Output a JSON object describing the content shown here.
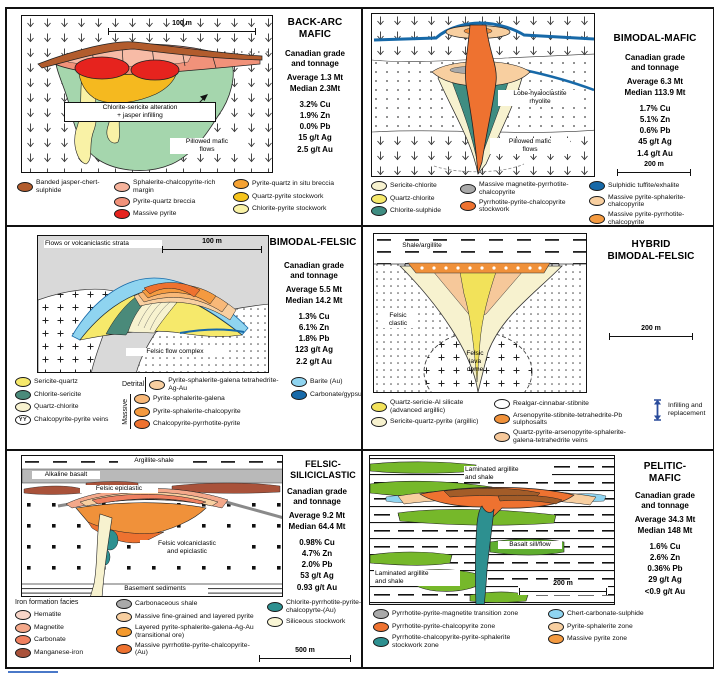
{
  "panels": [
    {
      "id": "back-arc-mafic",
      "title_lines": [
        "BACK-ARC",
        "MAFIC"
      ],
      "grade_heading": "Canadian grade\nand tonnage",
      "average": "Average 1.3 Mt",
      "median": "Median 2.3Mt",
      "grades": [
        "3.2% Cu",
        "1.9% Zn",
        "0.0% Pb",
        "15 g/t Ag",
        "2.5 g/t Au"
      ],
      "scale_label": "100 m",
      "labels": {
        "alteration": "Chlorite-sericite alteration\n+ jasper infilling",
        "pillowed": "Pillowed mafic\nflows"
      },
      "legend": {
        "col1": [
          {
            "label": "Banded jasper-chert-sulphide",
            "color": "#b25c2d"
          }
        ],
        "col2": [
          {
            "label": "Sphalerite-chalcopyrite-rich margin",
            "color": "#f6b39c"
          },
          {
            "label": "Pyrite-quartz breccia",
            "color": "#f1927a"
          },
          {
            "label": "Massive pyrite",
            "color": "#e6231e"
          }
        ],
        "col3": [
          {
            "label": "Pyrite-quartz in situ breccia",
            "color": "#f5a233"
          },
          {
            "label": "Quartz-pyrite stockwork",
            "color": "#f6c41d"
          },
          {
            "label": "Chlorite-pyrite stockwork",
            "color": "#f9f2a6"
          }
        ]
      }
    },
    {
      "id": "bimodal-mafic",
      "title_lines": [
        "BIMODAL-MAFIC"
      ],
      "grade_heading": "Canadian grade\nand tonnage",
      "average": "Average 6.3 Mt",
      "median": "Median 113.9 Mt",
      "grades": [
        "1.7% Cu",
        "5.1% Zn",
        "0.6% Pb",
        "45 g/t Ag",
        "1.4 g/t Au"
      ],
      "scale_label": "200 m",
      "labels": {
        "lobe": "Lobe-hyaloclastite\nrhyolite",
        "pillowed": "Pillowed mafic\nflows"
      },
      "legend": {
        "col1": [
          {
            "label": "Sericite-chlorite",
            "color": "#f7f2cf"
          },
          {
            "label": "Quartz-chlorite",
            "color": "#f6e96b"
          },
          {
            "label": "Chlorite-sulphide",
            "color": "#3f8d82"
          }
        ],
        "col2": [
          {
            "label": "Massive magnetite-pyrrhotite-chalcopyrite",
            "color": "#a9a9a9"
          },
          {
            "label": "Pyrrhotite-pyrite-chalcopyrite stockwork",
            "color": "#ee7230"
          }
        ],
        "col3": [
          {
            "label": "Sulphidic tuffite/exhalite",
            "color": "#1769a8"
          },
          {
            "label": "Massive pyrite-sphalerite-chalcopyrite",
            "color": "#f8cfa0"
          },
          {
            "label": "Massive pyrite-pyrrhotite-chalcopyrite",
            "color": "#f49a40"
          }
        ]
      }
    },
    {
      "id": "bimodal-felsic",
      "title_lines": [
        "BIMODAL-FELSIC"
      ],
      "grade_heading": "Canadian grade\nand tonnage",
      "average": "Average 5.5 Mt",
      "median": "Median 14.2 Mt",
      "grades": [
        "1.3% Cu",
        "6.1% Zn",
        "1.8% Pb",
        "123 g/t Ag",
        "2.2 g/t Au"
      ],
      "scale_label": "100 m",
      "labels": {
        "strata": "Flows or volcaniclastic strata",
        "complex": "Felsic flow complex"
      },
      "legend": {
        "col1": [
          {
            "label": "Sericite-quartz",
            "color": "#f6e96b"
          },
          {
            "label": "Chlorite-sericite",
            "color": "#4a8a7a"
          },
          {
            "label": "Quartz-chlorite",
            "color": "#f7f2cf"
          },
          {
            "label": "Chalcopyrite-pyrite veins",
            "type": "veins",
            "color": "#ffffff"
          }
        ],
        "detrital_label": "Detrital",
        "detrital": [
          {
            "label": "Pyrite-sphalerite-galena tetrahedrite-Ag-Au",
            "color": "#f8cfa0"
          }
        ],
        "massive_label": "Massive",
        "massive": [
          {
            "label": "Pyrite-sphalerite-galena",
            "color": "#f8b878"
          },
          {
            "label": "Pyrite-sphalerite-chalcopyrite",
            "color": "#f49a40"
          },
          {
            "label": "Chalcopyrite-pyrrhotite-pyrite",
            "color": "#ee7230"
          }
        ],
        "col3": [
          {
            "label": "Barite (Au)",
            "color": "#8fd4f0"
          },
          {
            "label": "Carbonate/gypsum",
            "color": "#1769a8"
          }
        ]
      }
    },
    {
      "id": "hybrid-bimodal-felsic",
      "title_lines": [
        "HYBRID",
        "BIMODAL-FELSIC"
      ],
      "scale_label": "200 m",
      "labels": {
        "shale": "Shale/argillite",
        "clastic": "Felsic\nclastic",
        "dome": "Felsic\nlava\ndome"
      },
      "legend": {
        "col1": [
          {
            "label": "Quartz-sericie-Al silicate (advanced argillic)",
            "color": "#f2e25a"
          },
          {
            "label": "Sericite-quartz-pyrite (argillic)",
            "color": "#f7f2cf"
          }
        ],
        "col2": [
          {
            "label": "Realgar-cinnabar-stibnite",
            "color": "#ffffff"
          },
          {
            "label": "Arsenopyrite-stibnite-tetrahedrite-Pb sulphosalts",
            "color": "#f0913a"
          },
          {
            "label": "Quartz-pyrite-arsenopyrite-sphalerite-galena-tetrahedrite veins",
            "color": "#f6c89a"
          }
        ],
        "col3": [
          {
            "label": "Infilling and replacement",
            "type": "infill"
          }
        ]
      }
    },
    {
      "id": "felsic-siliciclastic",
      "title_lines": [
        "FELSIC-",
        "SILICICLASTIC"
      ],
      "grade_heading": "Canadian grade\nand tonnage",
      "average": "Average 9.2 Mt",
      "median": "Median 64.4 Mt",
      "grades": [
        "0.98% Cu",
        "4.7% Zn",
        "2.0% Pb",
        "53 g/t Ag",
        "0.93 g/t Au"
      ],
      "scale_label": "500 m",
      "labels": {
        "argillite": "Argillite-shale",
        "basalt": "Alkaline basalt",
        "epiclastic": "Felsic epiclastic",
        "volcaniclastic": "Felsic volcaniclastic\nand epiclastic",
        "basement": "Basement sediments"
      },
      "legend": {
        "col1": [
          {
            "header": "Iron formation facies"
          },
          {
            "label": "Hematite",
            "color": "#f8d5c8"
          },
          {
            "label": "Magnetite",
            "color": "#f4a88a"
          },
          {
            "label": "Carbonate",
            "color": "#ef8060"
          },
          {
            "label": "Manganese-iron",
            "color": "#a9523a"
          }
        ],
        "col2": [
          {
            "label": "Carbonaceous shale",
            "color": "#a9a9a9"
          },
          {
            "label": "Massive fine-grained and layered pyrite",
            "color": "#f8cfa0"
          },
          {
            "label": "Layered pyrite-sphalerite-galena-Ag-Au (transitional ore)",
            "color": "#f49a2e"
          },
          {
            "label": "Massive pyrrhotite-pyrite-chalcopyrite-(Au)",
            "color": "#ee7230"
          }
        ],
        "col3": [
          {
            "label": "Chlorite-pyrrhotite-pyrite-chalcopyrte-(Au)",
            "color": "#2d9090"
          },
          {
            "label": "Siliceous stockwork",
            "color": "#f9f6d5"
          }
        ]
      }
    },
    {
      "id": "pelitic-mafic",
      "title_lines": [
        "PELITIC-",
        "MAFIC"
      ],
      "grade_heading": "Canadian grade\nand tonnage",
      "average": "Average 34.3 Mt",
      "median": "Median 148 Mt",
      "grades": [
        "1.6% Cu",
        "2.6% Zn",
        "0.36% Pb",
        "29 g/t Ag",
        "<0.9 g/t Au"
      ],
      "scale_label": "200 m",
      "labels": {
        "laminated_top": "Laminated argillite\nand shale",
        "basalt_sill": "Basalt sill/flow",
        "laminated_bottom": "Laminated argillite\nand shale"
      },
      "legend": {
        "col1": [
          {
            "label": "Pyrrhotite-pyrite-magnetite transition zone",
            "color": "#a9a9a9"
          },
          {
            "label": "Pyrrhotite-pyrite-chalcopyrite zone",
            "color": "#ee7230"
          },
          {
            "label": "Pyrrhotite-chalcopyrite-pyrite-sphalerite stockwork zone",
            "color": "#2d9090"
          }
        ],
        "col2": [
          {
            "label": "Chert-carbonate-sulphide",
            "color": "#8fd4f0"
          },
          {
            "label": "Pyrite-sphalerite zone",
            "color": "#f8cfa0"
          },
          {
            "label": "Massive pyrite zone",
            "color": "#f49a40"
          }
        ]
      }
    }
  ]
}
